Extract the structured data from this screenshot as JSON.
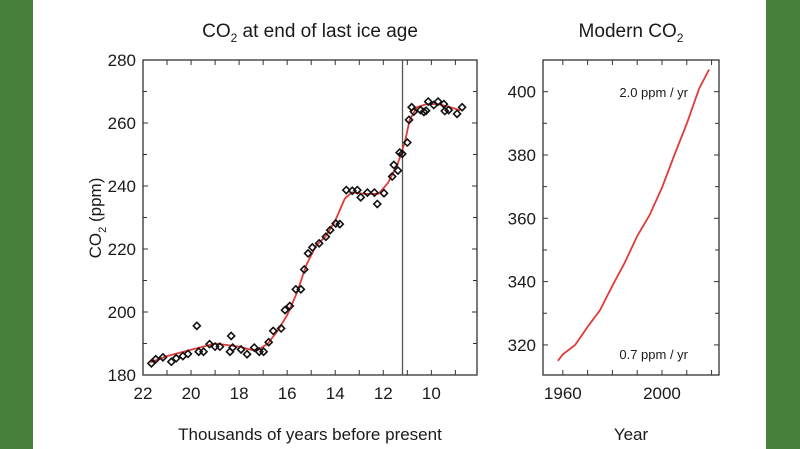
{
  "colors": {
    "border": "#46803a",
    "fit_line": "#e03a3a",
    "points": "#111111",
    "axis": "#333333"
  },
  "chart_data": [
    {
      "type": "scatter",
      "title": "CO2 at end of last ice age",
      "title_main": "CO",
      "title_sub": "2",
      "title_rest": " at end of last ice age",
      "xlabel": "Thousands of years before present",
      "ylabel_main": "CO",
      "ylabel_sub": "2",
      "ylabel_rest": " (ppm)",
      "xlim": [
        22,
        8.1
      ],
      "ylim": [
        180,
        280
      ],
      "x_reversed": true,
      "xticks": [
        22,
        20,
        18,
        16,
        14,
        12,
        10
      ],
      "yticks": [
        180,
        200,
        220,
        240,
        260,
        280
      ],
      "vertical_line_x": 11.2,
      "grid": false,
      "series": [
        {
          "kind": "points",
          "marker": "diamond",
          "points": [
            [
              21.65,
              183.7
            ],
            [
              21.47,
              185
            ],
            [
              21.17,
              185.6
            ],
            [
              20.82,
              184.2
            ],
            [
              20.62,
              185.3
            ],
            [
              20.34,
              186
            ],
            [
              20.13,
              186.7
            ],
            [
              19.76,
              195.6
            ],
            [
              19.68,
              187.4
            ],
            [
              19.48,
              187.4
            ],
            [
              19.23,
              189.8
            ],
            [
              19.0,
              189
            ],
            [
              18.8,
              189
            ],
            [
              18.38,
              187.4
            ],
            [
              18.33,
              192.4
            ],
            [
              18.27,
              188.7
            ],
            [
              17.92,
              188.1
            ],
            [
              17.67,
              186.6
            ],
            [
              17.37,
              188.7
            ],
            [
              17.16,
              187.4
            ],
            [
              16.98,
              187.4
            ],
            [
              16.77,
              190.4
            ],
            [
              16.58,
              194
            ],
            [
              16.25,
              194.8
            ],
            [
              16.09,
              200.6
            ],
            [
              15.89,
              201.9
            ],
            [
              15.64,
              207.2
            ],
            [
              15.43,
              207.2
            ],
            [
              15.29,
              213.5
            ],
            [
              15.13,
              218.6
            ],
            [
              14.95,
              220.5
            ],
            [
              14.67,
              221.8
            ],
            [
              14.39,
              223.9
            ],
            [
              14.21,
              226
            ],
            [
              13.98,
              228.1
            ],
            [
              13.81,
              227.9
            ],
            [
              13.54,
              238.7
            ],
            [
              13.29,
              238.5
            ],
            [
              13.08,
              238.7
            ],
            [
              12.94,
              236.4
            ],
            [
              12.66,
              237.9
            ],
            [
              12.37,
              237.9
            ],
            [
              12.25,
              234.3
            ],
            [
              11.97,
              237.7
            ],
            [
              11.63,
              243
            ],
            [
              11.56,
              246.7
            ],
            [
              11.39,
              244.9
            ],
            [
              11.32,
              250.6
            ],
            [
              11.21,
              250.2
            ],
            [
              11.0,
              253.8
            ],
            [
              10.93,
              261
            ],
            [
              10.82,
              265
            ],
            [
              10.73,
              263.6
            ],
            [
              10.45,
              264.1
            ],
            [
              10.31,
              263.5
            ],
            [
              10.22,
              263.9
            ],
            [
              10.13,
              266.8
            ],
            [
              9.9,
              265.7
            ],
            [
              9.72,
              266.8
            ],
            [
              9.48,
              266
            ],
            [
              9.44,
              263.8
            ],
            [
              9.28,
              264.1
            ],
            [
              8.93,
              262.9
            ],
            [
              8.72,
              265
            ]
          ]
        },
        {
          "kind": "fit",
          "points": [
            [
              21.7,
              184
            ],
            [
              21,
              186
            ],
            [
              20,
              188
            ],
            [
              19,
              190
            ],
            [
              18,
              189
            ],
            [
              17.5,
              188
            ],
            [
              17.2,
              188
            ],
            [
              16.8,
              190
            ],
            [
              16.4,
              194
            ],
            [
              16,
              199
            ],
            [
              15.6,
              206
            ],
            [
              15.2,
              215
            ],
            [
              14.8,
              221
            ],
            [
              14.4,
              224
            ],
            [
              14,
              229
            ],
            [
              13.6,
              236
            ],
            [
              13.3,
              238
            ],
            [
              12.8,
              237.5
            ],
            [
              12.2,
              237.5
            ],
            [
              11.8,
              241
            ],
            [
              11.4,
              247
            ],
            [
              11.1,
              254
            ],
            [
              10.9,
              261
            ],
            [
              10.6,
              265
            ],
            [
              10.2,
              266
            ],
            [
              9.7,
              266
            ],
            [
              9.2,
              265
            ],
            [
              8.8,
              264
            ]
          ]
        }
      ]
    },
    {
      "type": "line",
      "title_main": "Modern CO",
      "title_sub": "2",
      "xlabel": "Year",
      "xlim": [
        1952,
        2023
      ],
      "ylim": [
        310.5,
        410
      ],
      "xticks": [
        1960,
        2000
      ],
      "xminor": [
        1950,
        1970,
        1980,
        1990,
        2010,
        2020
      ],
      "yticks": [
        320,
        340,
        360,
        380,
        400
      ],
      "grid": false,
      "annotations": [
        "2.0 ppm / yr",
        "0.7 ppm / yr"
      ],
      "x": [
        1958,
        1960,
        1965,
        1970,
        1975,
        1980,
        1985,
        1990,
        1995,
        2000,
        2005,
        2010,
        2015,
        2019
      ],
      "y": [
        315,
        317,
        320,
        325.7,
        331,
        338.7,
        346,
        354.4,
        361,
        369.7,
        380,
        389.9,
        401,
        407
      ]
    }
  ]
}
